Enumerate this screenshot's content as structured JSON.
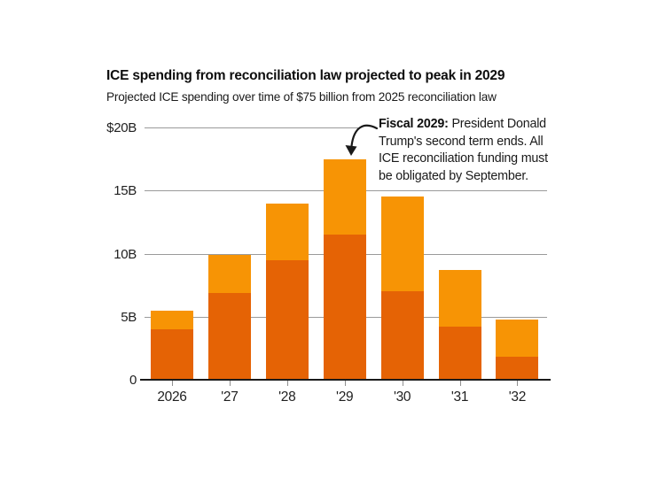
{
  "header": {
    "title": "ICE spending from reconciliation law projected to peak in 2029",
    "subtitle": "Projected ICE spending over time of $75 billion from 2025 reconciliation law"
  },
  "chart_data": {
    "type": "bar",
    "stacked": true,
    "title": "ICE spending from reconciliation law projected to peak in 2029",
    "subtitle": "Projected ICE spending over time of $75 billion from 2025 reconciliation law",
    "categories": [
      "2026",
      "'27",
      "'28",
      "'29",
      "'30",
      "'31",
      "'32"
    ],
    "series": [
      {
        "name": "lower-segment-dark-orange",
        "color": "#E56305",
        "values": [
          4.0,
          6.9,
          9.5,
          11.5,
          7.0,
          4.2,
          1.8
        ]
      },
      {
        "name": "upper-segment-light-orange",
        "color": "#F79405",
        "values": [
          1.5,
          3.0,
          4.5,
          6.0,
          7.5,
          4.5,
          3.0
        ]
      }
    ],
    "totals": [
      5.5,
      9.9,
      14.0,
      17.5,
      14.5,
      8.7,
      4.8
    ],
    "xlabel": "",
    "ylabel": "",
    "ylim": [
      0,
      20
    ],
    "y_ticks": [
      {
        "label": "$20B",
        "value": 20
      },
      {
        "label": "15B",
        "value": 15
      },
      {
        "label": "10B",
        "value": 10
      },
      {
        "label": "5B",
        "value": 5
      },
      {
        "label": "0",
        "value": 0
      }
    ],
    "grid": "horizontal",
    "legend": "none",
    "annotation": {
      "bold_lead": "Fiscal 2029:",
      "lines": [
        "President Donald",
        "Trump's second term ends. All",
        "ICE reconciliation funding must",
        "be obligated by September."
      ],
      "arrow_target": "top of 2029 bar"
    }
  },
  "colors": {
    "bar_dark": "#E56305",
    "bar_light": "#F79405",
    "gridline": "#9a9a9a",
    "axis": "#1a1a1a",
    "text": "#1a1a1a"
  }
}
